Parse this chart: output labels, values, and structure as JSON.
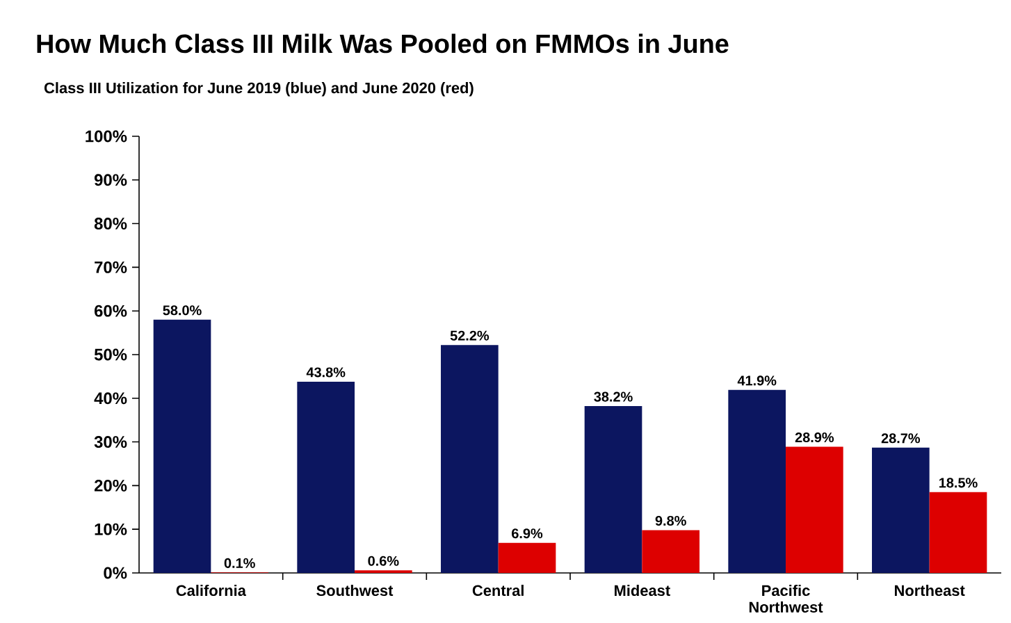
{
  "chart_data": {
    "type": "bar",
    "title": "How Much Class III Milk Was Pooled on FMMOs in June",
    "subtitle": "Class III Utilization for June 2019 (blue) and June 2020 (red)",
    "categories": [
      "California",
      "Southwest",
      "Central",
      "Mideast",
      "Pacific Northwest",
      "Northeast"
    ],
    "series": [
      {
        "color": "#0c1660",
        "values": [
          58.0,
          43.8,
          52.2,
          38.2,
          41.9,
          28.7
        ],
        "value_labels": [
          "58.0%",
          "43.8%",
          "52.2%",
          "38.2%",
          "41.9%",
          "28.7%"
        ]
      },
      {
        "color": "#dd0000",
        "values": [
          0.1,
          0.6,
          6.9,
          9.8,
          28.9,
          18.5
        ],
        "value_labels": [
          "0.1%",
          "0.6%",
          "6.9%",
          "9.8%",
          "28.9%",
          "18.5%"
        ]
      }
    ],
    "ylim": [
      0,
      100
    ],
    "yticks": [
      {
        "value": 0,
        "label": "0%"
      },
      {
        "value": 10,
        "label": "10%"
      },
      {
        "value": 20,
        "label": "20%"
      },
      {
        "value": 30,
        "label": "30%"
      },
      {
        "value": 40,
        "label": "40%"
      },
      {
        "value": 50,
        "label": "50%"
      },
      {
        "value": 60,
        "label": "60%"
      },
      {
        "value": 70,
        "label": "70%"
      },
      {
        "value": 80,
        "label": "80%"
      },
      {
        "value": 90,
        "label": "90%"
      },
      {
        "value": 100,
        "label": "100%"
      }
    ],
    "grid": false
  }
}
